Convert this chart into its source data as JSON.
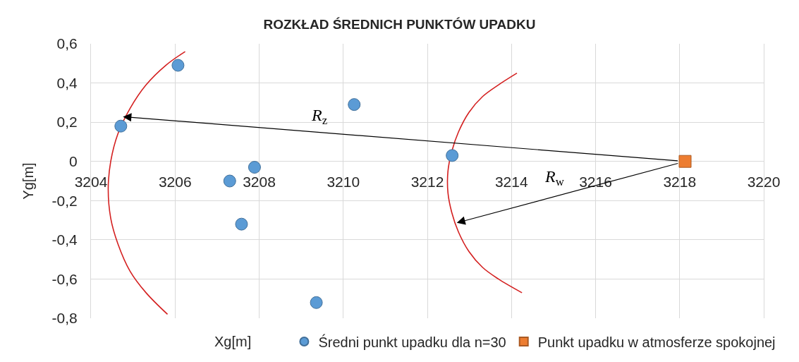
{
  "chart_data": {
    "type": "scatter",
    "title": "ROZKŁAD ŚREDNICH PUNKTÓW UPADKU",
    "xlabel": "Xg[m]",
    "ylabel": "Yg[m]",
    "xlim": [
      3204,
      3220
    ],
    "xticks": [
      3204,
      3206,
      3208,
      3210,
      3212,
      3214,
      3216,
      3218,
      3220
    ],
    "ylim": [
      -0.8,
      0.6
    ],
    "yticks": [
      {
        "value": -0.8,
        "label": "-0,8"
      },
      {
        "value": -0.6,
        "label": "-0,6"
      },
      {
        "value": -0.4,
        "label": "-0,4"
      },
      {
        "value": -0.2,
        "label": "-0,2"
      },
      0,
      {
        "value": 0.2,
        "label": "0,2"
      },
      {
        "value": 0.4,
        "label": "0,4"
      },
      {
        "value": 0.6,
        "label": "0,6"
      }
    ],
    "grid": true,
    "legend": "bottom",
    "series": [
      {
        "name": "Średni punkt upadku dla n=30",
        "marker": "circle",
        "color": "#5b9bd5",
        "x": [
          3204.71,
          3206.07,
          3207.89,
          3207.3,
          3207.58,
          3209.36,
          3210.26,
          3212.59
        ],
        "values": [
          0.18,
          0.49,
          -0.03,
          -0.1,
          -0.32,
          -0.72,
          0.29,
          0.03
        ]
      },
      {
        "name": "Punkt upadku w atmosferze spokojnej",
        "marker": "square",
        "color": "#ed7d31",
        "x": [
          3218.13
        ],
        "values": [
          0.0
        ]
      },
      {
        "type": "line",
        "marker": "none",
        "line_style": "solid",
        "color": "#d42020",
        "x": [
          3206.24,
          3205.78,
          3205.31,
          3204.93,
          3204.64,
          3204.47,
          3204.41,
          3204.47,
          3204.64,
          3204.93,
          3205.31,
          3205.82
        ],
        "values": [
          0.56,
          0.49,
          0.39,
          0.27,
          0.14,
          0.0,
          -0.14,
          -0.29,
          -0.42,
          -0.56,
          -0.67,
          -0.78
        ]
      },
      {
        "type": "line",
        "marker": "none",
        "line_style": "solid",
        "color": "#d42020",
        "x": [
          3214.13,
          3213.69,
          3213.31,
          3212.99,
          3212.74,
          3212.58,
          3212.49,
          3212.49,
          3212.58,
          3212.74,
          3212.99,
          3213.31,
          3213.69,
          3214.25
        ],
        "values": [
          0.45,
          0.39,
          0.33,
          0.25,
          0.15,
          0.05,
          -0.05,
          -0.16,
          -0.26,
          -0.36,
          -0.46,
          -0.54,
          -0.6,
          -0.67
        ]
      }
    ],
    "annotations": [
      "R$_{z}$",
      "R$_{w}$"
    ]
  }
}
